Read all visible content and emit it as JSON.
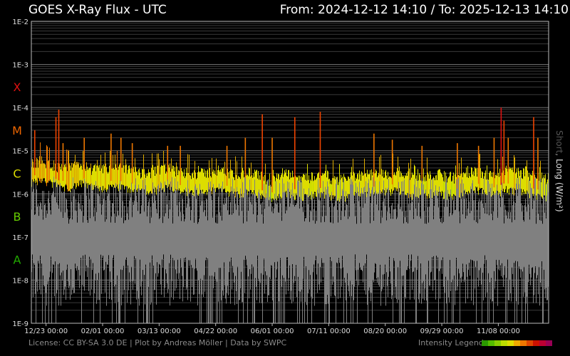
{
  "header": {
    "title": "GOES X-Ray Flux - UTC",
    "from_label": "From:",
    "from_value": "2024-12-12 14:10",
    "separator": "/",
    "to_label": "To:",
    "to_value": "2025-12-13 14:10"
  },
  "footer": {
    "license": "License: CC BY-SA 3.0 DE | Plot by Andreas Möller | Data by SWPC",
    "legend_label": "Intensity Legend",
    "legend_colors": [
      "#2a9a00",
      "#55bb00",
      "#88cc00",
      "#bbdd00",
      "#dddd00",
      "#eeaa00",
      "#ee7700",
      "#dd4400",
      "#cc1100",
      "#bb0033",
      "#990055"
    ]
  },
  "chart_data": {
    "type": "line",
    "title": "GOES X-Ray Flux - UTC",
    "ylabel_short": "Short",
    "ylabel_sep": ",",
    "ylabel_long": "Long (W/m²)",
    "y_scale": "log",
    "ylim": [
      1e-09,
      0.01
    ],
    "y_tick_labels": [
      "1E-2",
      "1E-3",
      "1E-4",
      "1E-5",
      "1E-6",
      "1E-7",
      "1E-8",
      "1E-9"
    ],
    "flare_classes": [
      {
        "label": "X",
        "color": "#dd1111",
        "value": 0.0003
      },
      {
        "label": "M",
        "color": "#ee6600",
        "value": 3e-05
      },
      {
        "label": "C",
        "color": "#dddd00",
        "value": 3e-06
      },
      {
        "label": "B",
        "color": "#66cc00",
        "value": 3e-07
      },
      {
        "label": "A",
        "color": "#22aa00",
        "value": 3e-08
      }
    ],
    "xlim": [
      "2024-12-12 14:10",
      "2025-12-13 14:10"
    ],
    "x_tick_labels": [
      {
        "label": "12/23 00:00",
        "date": "2024-12-23"
      },
      {
        "label": "02/01 00:00",
        "date": "2025-02-01"
      },
      {
        "label": "03/13 00:00",
        "date": "2025-03-13"
      },
      {
        "label": "04/22 00:00",
        "date": "2025-04-22"
      },
      {
        "label": "06/01 00:00",
        "date": "2025-06-01"
      },
      {
        "label": "07/11 00:00",
        "date": "2025-07-11"
      },
      {
        "label": "08/20 00:00",
        "date": "2025-08-20"
      },
      {
        "label": "09/29 00:00",
        "date": "2025-09-29"
      },
      {
        "label": "11/08 00:00",
        "date": "2025-11-08"
      }
    ],
    "grid": true,
    "series": [
      {
        "name": "Long",
        "dates": [
          "2024-12-12",
          "2024-12-19",
          "2024-12-26",
          "2025-01-02",
          "2025-01-09",
          "2025-01-16",
          "2025-01-23",
          "2025-01-30",
          "2025-02-06",
          "2025-02-13",
          "2025-02-20",
          "2025-02-27",
          "2025-03-06",
          "2025-03-13",
          "2025-03-20",
          "2025-03-27",
          "2025-04-03",
          "2025-04-10",
          "2025-04-17",
          "2025-04-24",
          "2025-05-01",
          "2025-05-08",
          "2025-05-15",
          "2025-05-22",
          "2025-05-29",
          "2025-06-05",
          "2025-06-12",
          "2025-06-19",
          "2025-06-26",
          "2025-07-03",
          "2025-07-10",
          "2025-07-17",
          "2025-07-24",
          "2025-07-31",
          "2025-08-07",
          "2025-08-14",
          "2025-08-21",
          "2025-08-28",
          "2025-09-04",
          "2025-09-11",
          "2025-09-18",
          "2025-09-25",
          "2025-10-02",
          "2025-10-09",
          "2025-10-16",
          "2025-10-23",
          "2025-10-30",
          "2025-11-06",
          "2025-11-13",
          "2025-11-20",
          "2025-11-27",
          "2025-12-04",
          "2025-12-11"
        ],
        "baseline": [
          2.5e-06,
          3e-06,
          2.5e-06,
          2e-06,
          2e-06,
          2.5e-06,
          2e-06,
          1.8e-06,
          2e-06,
          2e-06,
          1.8e-06,
          1.6e-06,
          1.6e-06,
          1.8e-06,
          2e-06,
          1.6e-06,
          1.6e-06,
          1.5e-06,
          1.6e-06,
          1.8e-06,
          1.5e-06,
          1.4e-06,
          1.6e-06,
          1.4e-06,
          1e-06,
          1.2e-06,
          1.5e-06,
          1.2e-06,
          1.2e-06,
          1.4e-06,
          1.3e-06,
          1e-06,
          1.2e-06,
          1.4e-06,
          1.4e-06,
          1.5e-06,
          1.5e-06,
          1.8e-06,
          1.4e-06,
          1.2e-06,
          1.3e-06,
          1.5e-06,
          1.3e-06,
          1.2e-06,
          1.5e-06,
          1.8e-06,
          1.5e-06,
          1.4e-06,
          1.8e-06,
          1.6e-06,
          1.5e-06,
          1.3e-06,
          1.2e-06
        ],
        "peaks": [
          {
            "date": "2024-12-15",
            "value": 3e-05
          },
          {
            "date": "2024-12-30",
            "value": 6e-05
          },
          {
            "date": "2025-01-01",
            "value": 9e-05
          },
          {
            "date": "2025-01-04",
            "value": 1.5e-05
          },
          {
            "date": "2025-01-19",
            "value": 2e-05
          },
          {
            "date": "2025-02-07",
            "value": 2.5e-05
          },
          {
            "date": "2025-02-14",
            "value": 2e-05
          },
          {
            "date": "2025-02-22",
            "value": 1.5e-05
          },
          {
            "date": "2025-03-19",
            "value": 1.3e-05
          },
          {
            "date": "2025-03-28",
            "value": 1.3e-05
          },
          {
            "date": "2025-04-30",
            "value": 1.3e-05
          },
          {
            "date": "2025-05-13",
            "value": 2e-05
          },
          {
            "date": "2025-05-25",
            "value": 7e-05
          },
          {
            "date": "2025-06-01",
            "value": 2e-05
          },
          {
            "date": "2025-06-17",
            "value": 6e-05
          },
          {
            "date": "2025-07-05",
            "value": 8e-05
          },
          {
            "date": "2025-08-12",
            "value": 2.5e-05
          },
          {
            "date": "2025-08-25",
            "value": 1.8e-05
          },
          {
            "date": "2025-09-15",
            "value": 1.3e-05
          },
          {
            "date": "2025-10-10",
            "value": 1.5e-05
          },
          {
            "date": "2025-10-25",
            "value": 1.3e-05
          },
          {
            "date": "2025-11-05",
            "value": 2e-05
          },
          {
            "date": "2025-11-10",
            "value": 0.0001
          },
          {
            "date": "2025-11-12",
            "value": 5e-05
          },
          {
            "date": "2025-11-15",
            "value": 2e-05
          },
          {
            "date": "2025-12-03",
            "value": 6e-05
          },
          {
            "date": "2025-12-06",
            "value": 2e-05
          }
        ]
      },
      {
        "name": "Short",
        "color": "#808080",
        "min_value": 1e-09,
        "typical_range": [
          1e-08,
          2e-07
        ],
        "peak_value": 3e-06
      }
    ]
  }
}
